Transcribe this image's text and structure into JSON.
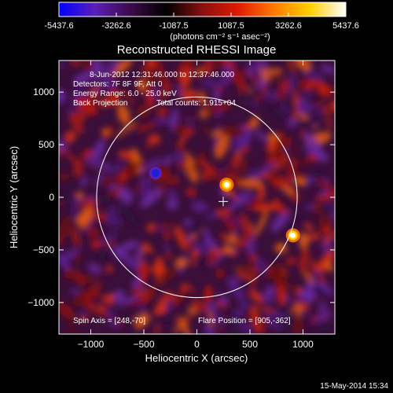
{
  "colorbar": {
    "tick_labels": [
      "-5437.6",
      "-3262.6",
      "-1087.5",
      "1087.5",
      "3262.6",
      "5437.6"
    ],
    "tick_values": [
      -5437.6,
      -3262.6,
      -1087.5,
      1087.5,
      3262.6,
      5437.6
    ],
    "range": [
      -5437.6,
      5437.6
    ],
    "unit_label": "(photons cm⁻² s⁻¹ asec⁻²)",
    "colors": [
      "#0000ff",
      "#5a1fb8",
      "#3c0a4a",
      "#000000",
      "#8a1010",
      "#e01a00",
      "#ff7a00",
      "#ffd000",
      "#ffffff"
    ]
  },
  "chart_data": {
    "type": "heatmap",
    "title": "Reconstructed RHESSI Image",
    "xlabel": "Heliocentric X (arcsec)",
    "ylabel": "Heliocentric Y (arcsec)",
    "xlim": [
      -1300,
      1300
    ],
    "ylim": [
      -1300,
      1300
    ],
    "x_ticks": [
      -1000,
      -500,
      0,
      500,
      1000
    ],
    "x_tick_labels": [
      "−1000",
      "−500",
      "0",
      "500",
      "1000"
    ],
    "y_ticks": [
      -1000,
      -500,
      0,
      500,
      1000
    ],
    "y_tick_labels": [
      "−1000",
      "−500",
      "0",
      "500",
      "1000"
    ],
    "solar_limb_radius": 945,
    "crosshair_position": [
      248,
      -40
    ],
    "hot_spots": [
      {
        "x": 280,
        "y": 120,
        "value": 5000
      },
      {
        "x": 905,
        "y": -362,
        "value": 5437.6
      },
      {
        "x": -390,
        "y": 230,
        "value": -5437.6
      }
    ],
    "annotations": {
      "time": "8-Jun-2012 12:31:46.000 to 12:37:46.000",
      "detectors": "Detectors: 7F 8F 9F, Att 0",
      "energy": "Energy Range: 6.0 - 25.0 keV",
      "method": "Back Projection",
      "counts": "Total counts: 1.915+04",
      "spin_axis": "Spin Axis = [248,-70]",
      "flare_position": "Flare Position = [905,-362]"
    }
  },
  "footer": {
    "timestamp": "15-May-2014 15:34"
  }
}
